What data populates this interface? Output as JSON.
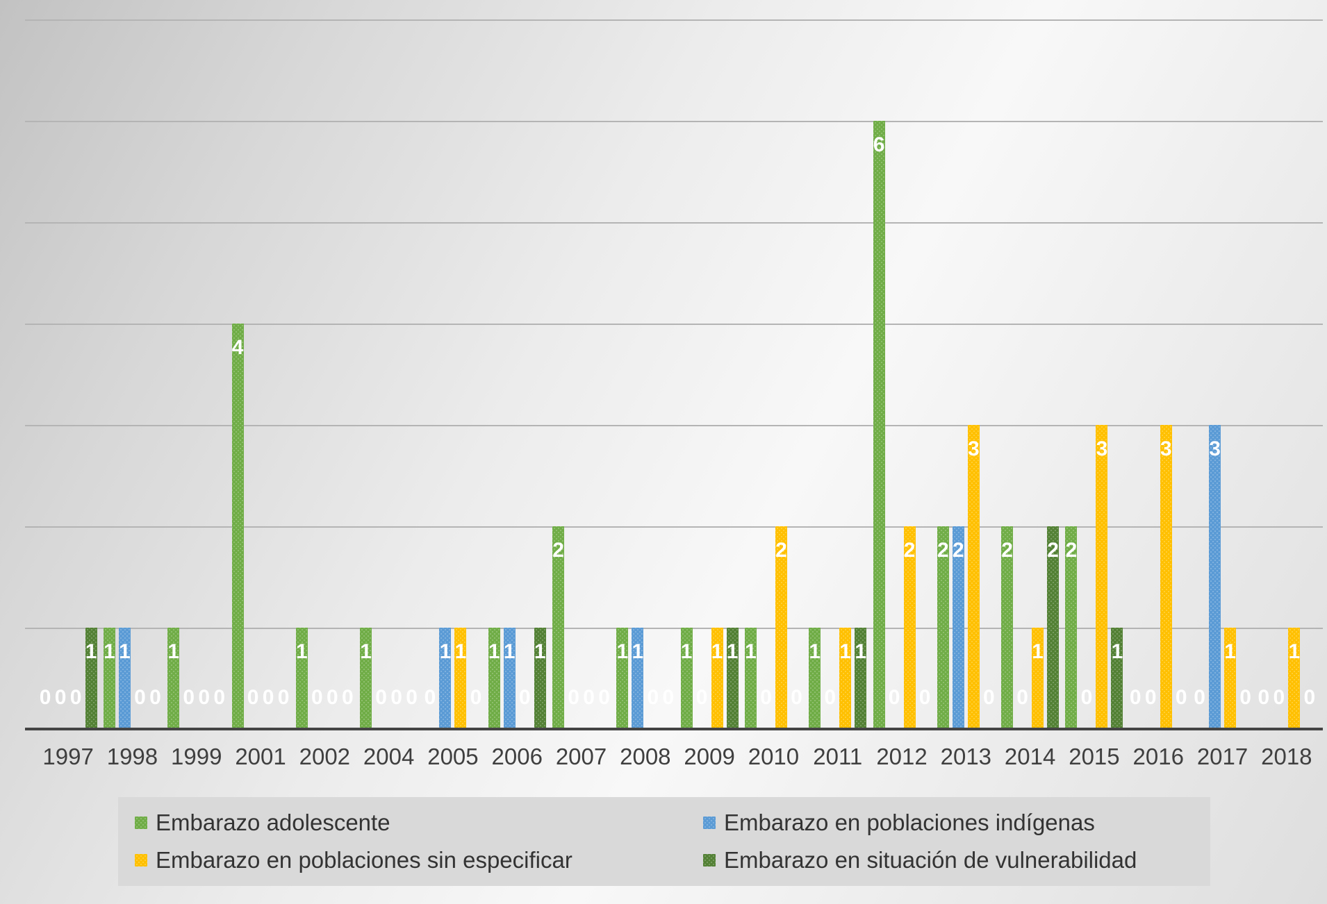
{
  "chart_data": {
    "type": "bar",
    "title": "",
    "categories": [
      "1997",
      "1998",
      "1999",
      "2001",
      "2002",
      "2004",
      "2005",
      "2006",
      "2007",
      "2008",
      "2009",
      "2010",
      "2011",
      "2012",
      "2013",
      "2014",
      "2015",
      "2016",
      "2017",
      "2018"
    ],
    "series": [
      {
        "key": "adolescente",
        "name": "Embarazo adolescente",
        "color": "#70AD47",
        "values": [
          0,
          1,
          1,
          4,
          1,
          1,
          0,
          1,
          2,
          1,
          1,
          1,
          1,
          6,
          2,
          2,
          2,
          0,
          0,
          0
        ]
      },
      {
        "key": "indigenas",
        "name": "Embarazo en poblaciones indígenas",
        "color": "#5B9BD5",
        "values": [
          0,
          1,
          0,
          0,
          0,
          0,
          1,
          1,
          0,
          1,
          0,
          0,
          0,
          0,
          2,
          0,
          0,
          0,
          3,
          0
        ]
      },
      {
        "key": "sin-especificar",
        "name": "Embarazo en poblaciones sin especificar",
        "color": "#FFC000",
        "values": [
          0,
          0,
          0,
          0,
          0,
          0,
          1,
          0,
          0,
          0,
          1,
          2,
          1,
          2,
          3,
          1,
          3,
          3,
          1,
          1
        ]
      },
      {
        "key": "vulnerabilidad",
        "name": "Embarazo en situación de vulnerabilidad",
        "color": "#538135",
        "values": [
          1,
          0,
          0,
          0,
          0,
          0,
          0,
          1,
          0,
          0,
          1,
          0,
          1,
          0,
          0,
          2,
          1,
          0,
          0,
          0
        ]
      }
    ],
    "ylim": [
      0,
      7
    ],
    "gridlines": true,
    "data_labels": true,
    "legend_position": "bottom",
    "colors": {
      "gridline": "#b4b4b4",
      "axis": "#444444",
      "data_label": "#ffffff",
      "legend_background": "#d9d9d9",
      "tick_label": "#3f3f3f"
    }
  }
}
